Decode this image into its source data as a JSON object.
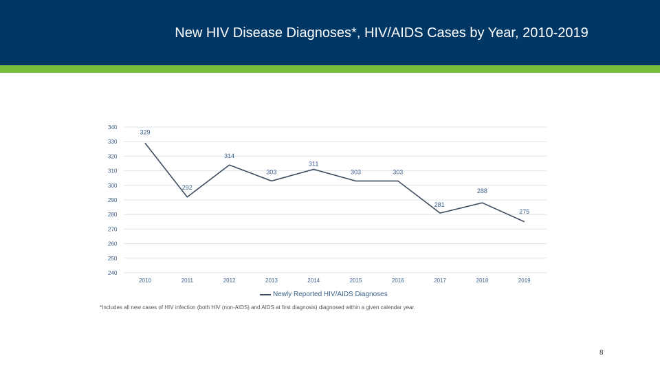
{
  "slide": {
    "title": "New HIV Disease Diagnoses*, HIV/AIDS Cases by Year, 2010-2019",
    "footnote": "*Includes all new cases of HIV infection (both HIV (non-AIDS) and AIDS at first diagnosis) diagnosed within a given calendar year.",
    "page_number": "8"
  },
  "colors": {
    "header_bg": "#003764",
    "accent_green": "#78be3c",
    "line": "#3c4b5e",
    "label": "#3b5f8a",
    "grid": "#dde3ea"
  },
  "chart_data": {
    "type": "line",
    "title": "",
    "xlabel": "",
    "ylabel": "",
    "categories": [
      "2010",
      "2011",
      "2012",
      "2013",
      "2014",
      "2015",
      "2016",
      "2017",
      "2018",
      "2019"
    ],
    "series": [
      {
        "name": "Newly Reported HIV/AIDS Diagnoses",
        "values": [
          329,
          292,
          314,
          303,
          311,
          303,
          303,
          281,
          288,
          275
        ]
      }
    ],
    "ylim": [
      240,
      340
    ],
    "yticks": [
      "240",
      "250",
      "260",
      "270",
      "280",
      "290",
      "300",
      "310",
      "320",
      "330",
      "340"
    ],
    "grid": true,
    "legend_position": "bottom"
  }
}
